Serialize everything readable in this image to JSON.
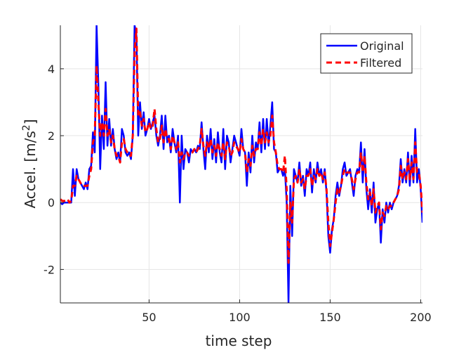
{
  "chart_data": {
    "type": "line",
    "xlabel": "time step",
    "ylabel": {
      "text": "Accel. [m/s",
      "sup": "2",
      "close": "]"
    },
    "xlim": [
      1,
      201
    ],
    "ylim": [
      -3,
      5.3
    ],
    "xticks": [
      50,
      100,
      150,
      200
    ],
    "yticks": [
      -2,
      0,
      2,
      4
    ],
    "grid": true,
    "legend_position": "top-right",
    "x": [
      1,
      2,
      3,
      4,
      5,
      6,
      7,
      8,
      9,
      10,
      11,
      12,
      13,
      14,
      15,
      16,
      17,
      18,
      19,
      20,
      21,
      22,
      23,
      24,
      25,
      26,
      27,
      28,
      29,
      30,
      31,
      32,
      33,
      34,
      35,
      36,
      37,
      38,
      39,
      40,
      41,
      42,
      43,
      44,
      45,
      46,
      47,
      48,
      49,
      50,
      51,
      52,
      53,
      54,
      55,
      56,
      57,
      58,
      59,
      60,
      61,
      62,
      63,
      64,
      65,
      66,
      67,
      68,
      69,
      70,
      71,
      72,
      73,
      74,
      75,
      76,
      77,
      78,
      79,
      80,
      81,
      82,
      83,
      84,
      85,
      86,
      87,
      88,
      89,
      90,
      91,
      92,
      93,
      94,
      95,
      96,
      97,
      98,
      99,
      100,
      101,
      102,
      103,
      104,
      105,
      106,
      107,
      108,
      109,
      110,
      111,
      112,
      113,
      114,
      115,
      116,
      117,
      118,
      119,
      120,
      121,
      122,
      123,
      124,
      125,
      126,
      127,
      128,
      129,
      130,
      131,
      132,
      133,
      134,
      135,
      136,
      137,
      138,
      139,
      140,
      141,
      142,
      143,
      144,
      145,
      146,
      147,
      148,
      149,
      150,
      151,
      152,
      153,
      154,
      155,
      156,
      157,
      158,
      159,
      160,
      161,
      162,
      163,
      164,
      165,
      166,
      167,
      168,
      169,
      170,
      171,
      172,
      173,
      174,
      175,
      176,
      177,
      178,
      179,
      180,
      181,
      182,
      183,
      184,
      185,
      186,
      187,
      188,
      189,
      190,
      191,
      192,
      193,
      194,
      195,
      196,
      197,
      198,
      199,
      200,
      201
    ],
    "series": [
      {
        "name": "Original",
        "color": "#0000ff",
        "dash": "solid",
        "values": [
          0,
          -0.05,
          0,
          0,
          0,
          0,
          0,
          1.0,
          0.2,
          1.0,
          0.7,
          0.6,
          0.5,
          0.4,
          0.6,
          0.4,
          1.0,
          1.1,
          2.1,
          1.5,
          5.3,
          3.5,
          1.0,
          2.6,
          1.6,
          3.6,
          1.7,
          2.5,
          1.7,
          2.2,
          1.6,
          1.3,
          1.5,
          1.2,
          2.2,
          2.0,
          1.5,
          1.4,
          1.5,
          1.3,
          2.0,
          5.3,
          5.0,
          2.0,
          3.0,
          2.2,
          2.7,
          2.0,
          2.2,
          2.5,
          2.2,
          2.4,
          2.6,
          2.0,
          1.7,
          2.0,
          2.6,
          1.6,
          2.6,
          1.8,
          2.0,
          1.5,
          2.2,
          1.8,
          1.5,
          2.0,
          0.0,
          2.0,
          1.0,
          1.6,
          1.5,
          1.2,
          1.6,
          1.5,
          1.6,
          1.5,
          1.7,
          1.6,
          2.4,
          1.6,
          1.0,
          2.0,
          1.5,
          2.2,
          1.3,
          1.9,
          1.2,
          2.1,
          1.5,
          1.2,
          2.2,
          1.0,
          2.0,
          1.8,
          1.2,
          1.6,
          2.0,
          1.8,
          1.6,
          1.4,
          2.2,
          1.6,
          1.5,
          0.5,
          1.5,
          0.9,
          2.0,
          1.2,
          1.8,
          1.6,
          2.4,
          1.5,
          2.5,
          1.6,
          2.5,
          1.7,
          2.3,
          3.0,
          1.6,
          1.5,
          0.9,
          1.0,
          1.0,
          0.8,
          1.0,
          0.0,
          -3.0,
          0.5,
          -1.0,
          1.0,
          0.8,
          0.6,
          1.2,
          0.5,
          0.8,
          0.2,
          1.0,
          0.8,
          1.2,
          0.3,
          1.0,
          0.6,
          1.2,
          0.8,
          1.0,
          0.6,
          1.0,
          0.3,
          -1.0,
          -1.5,
          -0.8,
          -0.5,
          0.2,
          0.6,
          0.2,
          0.5,
          1.0,
          1.2,
          0.8,
          0.9,
          1.0,
          0.6,
          0.2,
          0.8,
          1.0,
          0.9,
          1.8,
          0.6,
          1.6,
          0.4,
          -0.2,
          0.4,
          -0.3,
          0.6,
          -0.6,
          -0.2,
          0.0,
          -1.2,
          -0.2,
          -0.6,
          0.0,
          -0.3,
          0.0,
          -0.2,
          0.0,
          0.1,
          0.2,
          0.5,
          1.3,
          0.6,
          1.0,
          0.6,
          1.5,
          0.5,
          1.4,
          0.6,
          2.2,
          0.6,
          1.0,
          0.4,
          -0.6
        ]
      },
      {
        "name": "Filtered",
        "color": "#ff0000",
        "dash": "dashed",
        "values": [
          0.1,
          0.05,
          0.05,
          0.05,
          0.1,
          0,
          0.05,
          0.5,
          0.5,
          0.8,
          0.7,
          0.6,
          0.5,
          0.5,
          0.5,
          0.5,
          0.8,
          1.0,
          1.8,
          2.0,
          4.1,
          3.0,
          2.0,
          2.4,
          2.0,
          2.8,
          2.0,
          2.2,
          1.8,
          2.0,
          1.6,
          1.4,
          1.4,
          1.2,
          1.8,
          1.9,
          1.6,
          1.5,
          1.4,
          1.4,
          2.0,
          4.5,
          5.2,
          2.6,
          2.7,
          2.3,
          2.5,
          2.1,
          2.2,
          2.4,
          2.2,
          2.3,
          2.8,
          2.2,
          1.8,
          1.9,
          2.3,
          1.8,
          2.2,
          1.9,
          1.9,
          1.6,
          2.0,
          1.8,
          1.6,
          1.8,
          1.2,
          1.5,
          1.3,
          1.5,
          1.5,
          1.4,
          1.5,
          1.5,
          1.6,
          1.5,
          1.6,
          1.7,
          2.2,
          1.7,
          1.4,
          1.8,
          1.6,
          1.9,
          1.5,
          1.7,
          1.4,
          1.8,
          1.6,
          1.4,
          1.8,
          1.3,
          1.8,
          1.7,
          1.4,
          1.5,
          1.8,
          1.7,
          1.6,
          1.5,
          1.9,
          1.6,
          1.5,
          0.9,
          1.3,
          1.1,
          1.7,
          1.4,
          1.6,
          1.6,
          2.1,
          1.7,
          2.2,
          1.8,
          2.1,
          1.8,
          2.0,
          2.6,
          1.8,
          1.5,
          1.1,
          1.0,
          1.0,
          0.9,
          1.4,
          0.4,
          -1.8,
          0.0,
          -0.6,
          0.7,
          0.8,
          0.6,
          1.0,
          0.6,
          0.7,
          0.4,
          0.8,
          0.8,
          1.0,
          0.5,
          0.8,
          0.7,
          1.0,
          0.8,
          0.9,
          0.7,
          0.9,
          0.4,
          -0.6,
          -1.3,
          -0.9,
          -0.5,
          0.0,
          0.4,
          0.3,
          0.5,
          0.8,
          1.0,
          0.9,
          0.9,
          0.9,
          0.7,
          0.4,
          0.7,
          0.9,
          0.9,
          1.5,
          0.9,
          1.4,
          0.6,
          0.1,
          0.3,
          -0.1,
          0.4,
          -0.3,
          -0.1,
          0.0,
          -0.8,
          -0.3,
          -0.4,
          -0.1,
          -0.2,
          -0.1,
          -0.1,
          0.0,
          0.1,
          0.2,
          0.4,
          1.1,
          0.7,
          0.9,
          0.7,
          1.3,
          0.7,
          1.2,
          0.7,
          1.8,
          0.9,
          0.9,
          0.5,
          -0.3
        ]
      }
    ]
  }
}
